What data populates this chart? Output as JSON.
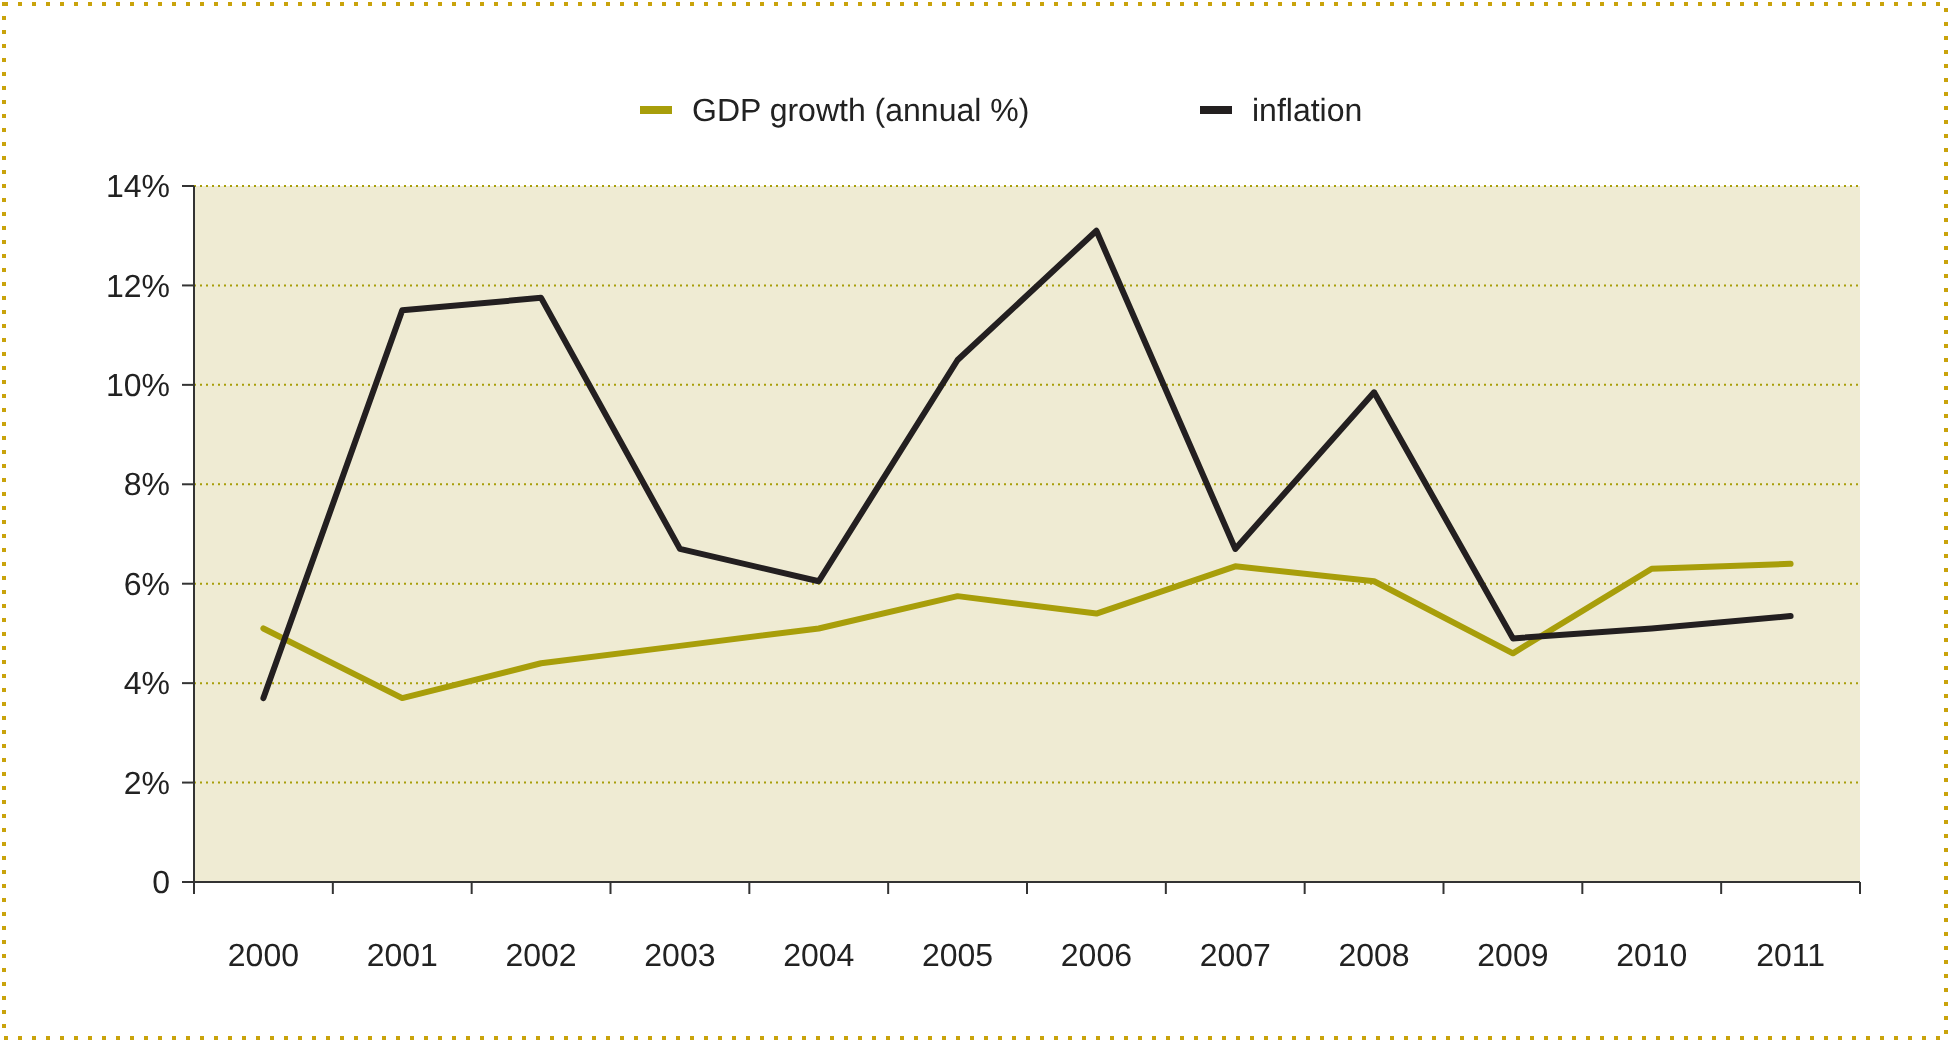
{
  "chart_data": {
    "type": "line",
    "categories": [
      "2000",
      "2001",
      "2002",
      "2003",
      "2004",
      "2005",
      "2006",
      "2007",
      "2008",
      "2009",
      "2010",
      "2011"
    ],
    "series": [
      {
        "name": "GDP growth (annual %)",
        "color": "#a89e0a",
        "values": [
          5.1,
          3.7,
          4.4,
          4.75,
          5.1,
          5.75,
          5.4,
          6.35,
          6.05,
          4.6,
          6.3,
          6.4
        ]
      },
      {
        "name": "inflation",
        "color": "#231f20",
        "values": [
          3.7,
          11.5,
          11.75,
          6.7,
          6.05,
          10.5,
          13.1,
          6.7,
          9.85,
          4.9,
          5.1,
          5.35
        ]
      }
    ],
    "ylim": [
      0,
      14
    ],
    "yticks": [
      {
        "value": 0,
        "label": "0"
      },
      {
        "value": 2,
        "label": "2%"
      },
      {
        "value": 4,
        "label": "4%"
      },
      {
        "value": 6,
        "label": "6%"
      },
      {
        "value": 8,
        "label": "8%"
      },
      {
        "value": 10,
        "label": "10%"
      },
      {
        "value": 12,
        "label": "12%"
      },
      {
        "value": 14,
        "label": "14%"
      }
    ],
    "grid": "y",
    "legend": "top",
    "marker": "none",
    "line_style": "solid"
  }
}
